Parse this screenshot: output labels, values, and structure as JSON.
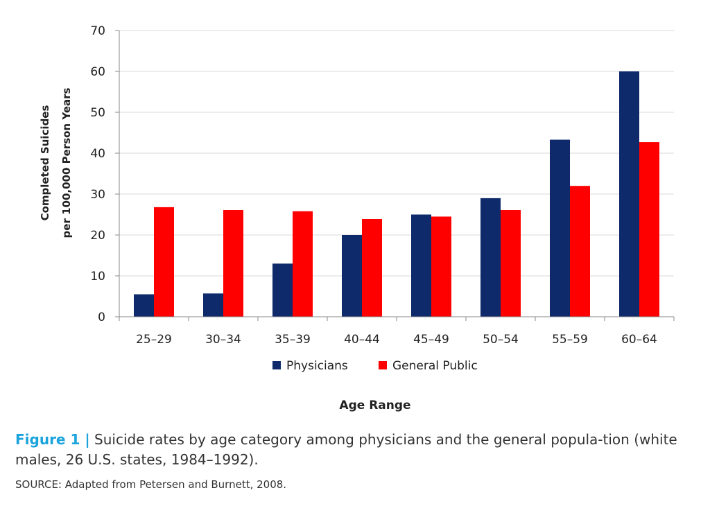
{
  "chart_data": {
    "type": "bar",
    "categories": [
      "25–29",
      "30–34",
      "35–39",
      "40–44",
      "45–49",
      "50–54",
      "55–59",
      "60–64"
    ],
    "series": [
      {
        "name": "Physicians",
        "color": "#0e2a6b",
        "values": [
          5.5,
          5.7,
          13,
          20,
          25,
          29,
          43.3,
          60
        ]
      },
      {
        "name": "General Public",
        "color": "#ff0000",
        "values": [
          26.8,
          26.1,
          25.8,
          23.9,
          24.5,
          26.1,
          32,
          42.7
        ]
      }
    ],
    "ylabel_line1": "Completed Suicides",
    "ylabel_line2": "per 100,000 Person Years",
    "xlabel": "Age Range",
    "ylim": [
      0,
      70
    ],
    "yticks": [
      0,
      10,
      20,
      30,
      40,
      50,
      60,
      70
    ],
    "grid": true,
    "legend_position": "bottom"
  },
  "caption": {
    "label": "Figure 1 |",
    "text": "Suicide rates by age category among physicians and the general popula-tion (white males, 26 U.S. states, 1984–1992)."
  },
  "source": "SOURCE: Adapted from Petersen and Burnett, 2008."
}
